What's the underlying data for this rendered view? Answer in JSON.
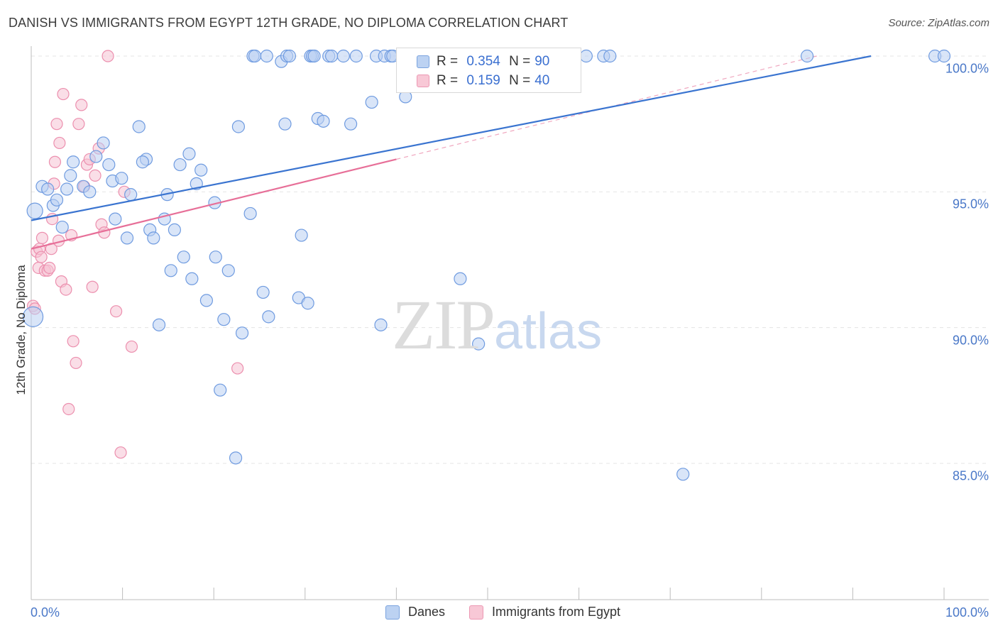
{
  "chart_data": {
    "type": "scatter",
    "title": "DANISH VS IMMIGRANTS FROM EGYPT 12TH GRADE, NO DIPLOMA CORRELATION CHART",
    "source": "Source: ZipAtlas.com",
    "ylabel": "12th Grade, No Diploma",
    "xlabel": "",
    "xlim": [
      0,
      100
    ],
    "ylim": [
      80.5,
      100.5
    ],
    "y_ticks": [
      {
        "value": 100,
        "label": "100.0%"
      },
      {
        "value": 95,
        "label": "95.0%"
      },
      {
        "value": 90,
        "label": "90.0%"
      },
      {
        "value": 85,
        "label": "85.0%"
      }
    ],
    "x_ticks": [
      {
        "value": 0,
        "label": "0.0%"
      },
      {
        "value": 100,
        "label": "100.0%"
      }
    ],
    "grid": true,
    "legend": {
      "position": "top-center",
      "entries": [
        {
          "r_label": "R =",
          "r_value": "0.354",
          "n_label": "N =",
          "n_value": "90"
        },
        {
          "r_label": "R =",
          "r_value": "0.159",
          "n_label": "N =",
          "n_value": "40"
        }
      ]
    },
    "watermark": {
      "zip": "ZIP",
      "atlas": "atlas"
    },
    "series": [
      {
        "name": "Danes",
        "color": "#6f9be0",
        "fill": "#b9d0f2",
        "trend": {
          "x0": 0,
          "y0": 93.95,
          "x1": 92,
          "y1": 100
        },
        "points": [
          [
            0.2,
            90.4
          ],
          [
            0.4,
            94.3
          ],
          [
            1.2,
            95.2
          ],
          [
            1.8,
            95.1
          ],
          [
            2.4,
            94.5
          ],
          [
            2.8,
            94.7
          ],
          [
            3.4,
            93.7
          ],
          [
            3.9,
            95.1
          ],
          [
            4.3,
            95.6
          ],
          [
            4.6,
            96.1
          ],
          [
            5.7,
            95.2
          ],
          [
            6.4,
            95.0
          ],
          [
            7.1,
            96.3
          ],
          [
            7.9,
            96.8
          ],
          [
            8.5,
            96.0
          ],
          [
            8.9,
            95.4
          ],
          [
            9.2,
            94.0
          ],
          [
            9.9,
            95.5
          ],
          [
            10.5,
            93.3
          ],
          [
            10.9,
            94.9
          ],
          [
            11.8,
            97.4
          ],
          [
            12.6,
            96.2
          ],
          [
            12.2,
            96.1
          ],
          [
            13.0,
            93.6
          ],
          [
            13.4,
            93.3
          ],
          [
            14.0,
            90.1
          ],
          [
            14.6,
            94.0
          ],
          [
            14.9,
            94.9
          ],
          [
            15.3,
            92.1
          ],
          [
            15.7,
            93.6
          ],
          [
            16.3,
            96.0
          ],
          [
            16.7,
            92.6
          ],
          [
            17.3,
            96.4
          ],
          [
            17.6,
            91.8
          ],
          [
            18.1,
            95.3
          ],
          [
            18.6,
            95.8
          ],
          [
            19.2,
            91.0
          ],
          [
            20.1,
            94.6
          ],
          [
            20.2,
            92.6
          ],
          [
            20.7,
            87.7
          ],
          [
            21.1,
            90.3
          ],
          [
            21.6,
            92.1
          ],
          [
            22.4,
            85.2
          ],
          [
            22.7,
            97.4
          ],
          [
            23.1,
            89.8
          ],
          [
            24.0,
            94.2
          ],
          [
            24.3,
            100
          ],
          [
            24.5,
            100
          ],
          [
            25.4,
            91.3
          ],
          [
            25.8,
            100
          ],
          [
            26.0,
            90.4
          ],
          [
            27.4,
            99.8
          ],
          [
            27.8,
            97.5
          ],
          [
            28.0,
            100
          ],
          [
            28.3,
            100
          ],
          [
            29.3,
            91.1
          ],
          [
            29.6,
            93.4
          ],
          [
            30.3,
            90.9
          ],
          [
            30.6,
            100
          ],
          [
            30.8,
            100
          ],
          [
            31.0,
            100
          ],
          [
            31.4,
            97.7
          ],
          [
            32.0,
            97.6
          ],
          [
            32.6,
            100
          ],
          [
            32.9,
            100
          ],
          [
            34.2,
            100
          ],
          [
            35.0,
            97.5
          ],
          [
            35.6,
            100
          ],
          [
            37.3,
            98.3
          ],
          [
            37.8,
            100
          ],
          [
            38.3,
            90.1
          ],
          [
            38.7,
            100
          ],
          [
            39.4,
            100
          ],
          [
            39.6,
            100
          ],
          [
            41.0,
            98.5
          ],
          [
            43.6,
            100
          ],
          [
            44.6,
            100
          ],
          [
            45.0,
            100
          ],
          [
            47.0,
            91.8
          ],
          [
            49.0,
            89.4
          ],
          [
            52.0,
            98.9
          ],
          [
            57.2,
            100
          ],
          [
            59.0,
            100
          ],
          [
            60.8,
            100
          ],
          [
            62.7,
            100
          ],
          [
            63.4,
            100
          ],
          [
            71.4,
            84.6
          ],
          [
            85.0,
            100
          ],
          [
            99.0,
            100
          ],
          [
            100,
            100
          ]
        ]
      },
      {
        "name": "Immigrants from Egypt",
        "color": "#ec8fae",
        "fill": "#f6c3d3",
        "trend": {
          "x0": 0,
          "y0": 92.9,
          "x1": 40,
          "y1": 96.2
        },
        "points": [
          [
            0.2,
            90.8
          ],
          [
            0.4,
            90.7
          ],
          [
            0.6,
            92.8
          ],
          [
            0.8,
            92.2
          ],
          [
            0.9,
            92.9
          ],
          [
            1.1,
            92.6
          ],
          [
            1.2,
            93.3
          ],
          [
            1.5,
            92.1
          ],
          [
            1.8,
            92.1
          ],
          [
            2.0,
            92.2
          ],
          [
            2.2,
            92.9
          ],
          [
            2.3,
            94.0
          ],
          [
            2.5,
            95.3
          ],
          [
            2.6,
            96.1
          ],
          [
            2.8,
            97.5
          ],
          [
            3.0,
            93.2
          ],
          [
            3.1,
            96.8
          ],
          [
            3.3,
            91.7
          ],
          [
            3.5,
            98.6
          ],
          [
            3.8,
            91.4
          ],
          [
            4.1,
            87.0
          ],
          [
            4.4,
            93.4
          ],
          [
            4.6,
            89.5
          ],
          [
            4.9,
            88.7
          ],
          [
            5.2,
            97.5
          ],
          [
            5.5,
            98.2
          ],
          [
            5.8,
            95.2
          ],
          [
            6.1,
            96.0
          ],
          [
            6.4,
            96.2
          ],
          [
            6.7,
            91.5
          ],
          [
            7.0,
            95.6
          ],
          [
            7.4,
            96.6
          ],
          [
            7.7,
            93.8
          ],
          [
            8.0,
            93.5
          ],
          [
            8.4,
            100
          ],
          [
            9.3,
            90.6
          ],
          [
            9.8,
            85.4
          ],
          [
            10.2,
            95.0
          ],
          [
            11.0,
            89.3
          ],
          [
            22.6,
            88.5
          ]
        ]
      }
    ]
  },
  "bottom_legend": [
    {
      "label": "Danes"
    },
    {
      "label": "Immigrants from Egypt"
    }
  ]
}
